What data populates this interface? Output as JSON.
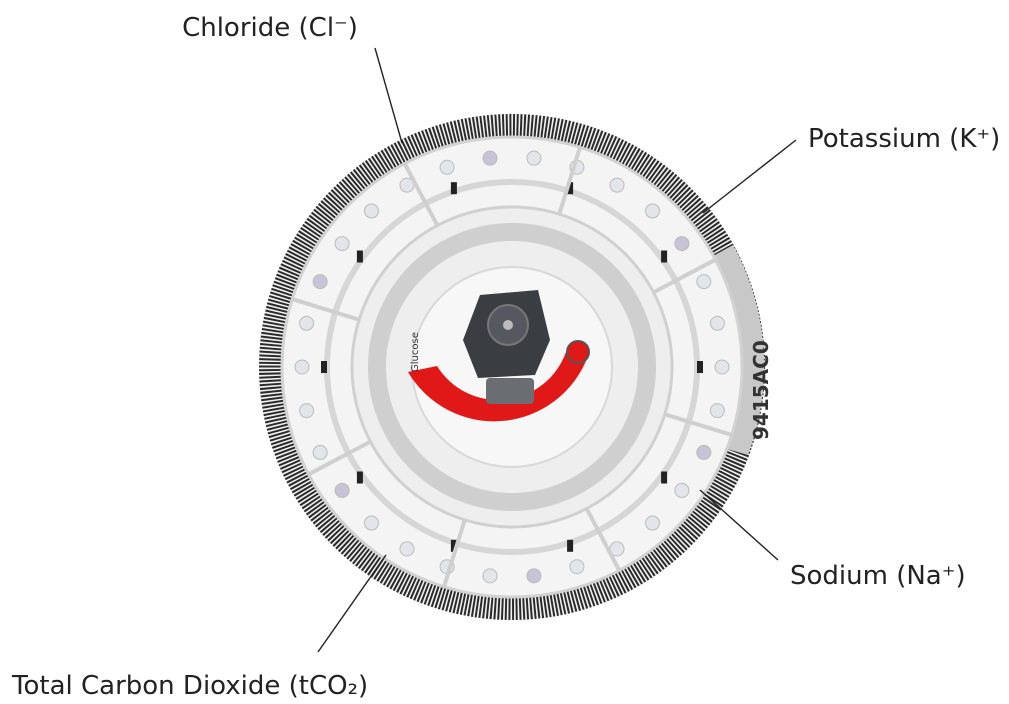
{
  "diagram": {
    "labels": [
      {
        "text": "Chloride (Cl⁻)"
      },
      {
        "text": "Potassium (K⁺)"
      },
      {
        "text": "Sodium (Na⁺)"
      },
      {
        "text": "Total Carbon Dioxide (tCO₂)"
      }
    ],
    "rotor_text": {
      "glucose": "Glucose",
      "code": "9415AC0"
    }
  }
}
